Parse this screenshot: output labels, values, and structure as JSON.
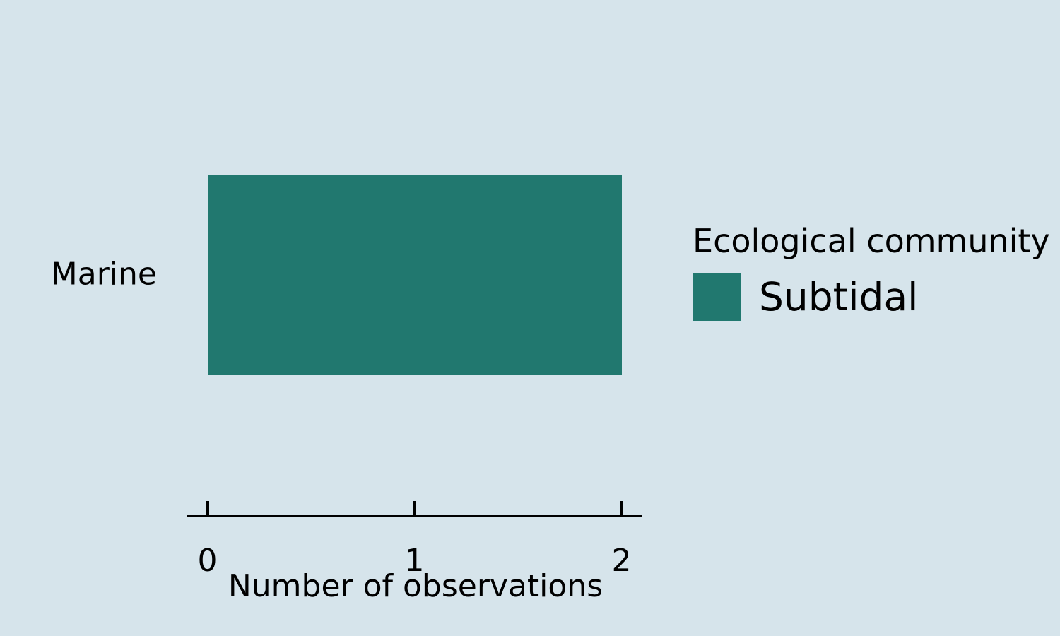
{
  "page": {
    "background": "#d6e4eb",
    "text_color": "#000000"
  },
  "chart_data": {
    "type": "bar",
    "orientation": "horizontal",
    "title": "",
    "xlabel": "Number of observations",
    "ylabel": "",
    "categories": [
      "Marine"
    ],
    "series": [
      {
        "name": "Subtidal",
        "values": [
          2
        ],
        "color": "#21786f"
      }
    ],
    "xlim": [
      0,
      2
    ],
    "xtick_labels": [
      "0",
      "1",
      "2"
    ],
    "xtick_values": [
      0,
      1,
      2
    ],
    "grid": false,
    "legend": {
      "title": "Ecological community",
      "position": "right",
      "entries": [
        {
          "label": "Subtidal",
          "color": "#21786f"
        }
      ]
    }
  }
}
